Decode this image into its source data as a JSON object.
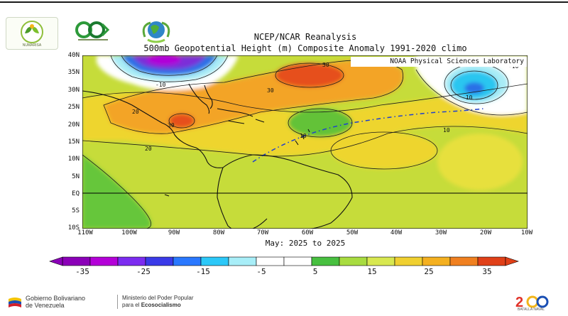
{
  "logos": {
    "left": "sunshine-logo",
    "middle": "ecological-logo",
    "right": "earth-leaves-logo",
    "left_text": "NUMARISA"
  },
  "title": {
    "line1": "NCEP/NCAR Reanalysis",
    "line2": "500mb Geopotential Height (m) Composite Anomaly 1991-2020 climo"
  },
  "credit": "NOAA Physical Sciences Laboratory",
  "lat_labels": [
    "40N",
    "35N",
    "30N",
    "25N",
    "20N",
    "15N",
    "10N",
    "5N",
    "EQ",
    "5S",
    "10S"
  ],
  "lon_labels": [
    "110W",
    "100W",
    "90W",
    "80W",
    "70W",
    "60W",
    "50W",
    "40W",
    "30W",
    "20W",
    "10W"
  ],
  "contour_labels": {
    "plus30_a": "30",
    "plus30_b": "30",
    "plus30_c": "30",
    "plus20_a": "20",
    "plus20_b": "20",
    "plus10_a": "10",
    "plus10_b": "10",
    "minus10_a": "-10",
    "minus10_b": "-10",
    "minus10_c": "-10"
  },
  "period": "May: 2025 to 2025",
  "colorbar": {
    "labels": [
      "-35",
      "-25",
      "-15",
      "-5",
      "5",
      "15",
      "25",
      "35"
    ],
    "colors": [
      "#8b00b8",
      "#b400d8",
      "#7c2cf0",
      "#3a3ae8",
      "#2a78ff",
      "#2cc8f8",
      "#a8eef8",
      "#ffffff",
      "#ffffff",
      "#48c040",
      "#a8dc40",
      "#d8e850",
      "#f0d030",
      "#f4b020",
      "#f08020",
      "#e04018"
    ]
  },
  "footer": {
    "gov_line1": "Gobierno Bolivariano",
    "gov_line2": "de Venezuela",
    "min_line1": "Ministerio del Poder Popular",
    "min_line2_prefix": "para el ",
    "min_line2_bold": "Ecosocialismo",
    "anniversary": "BATALLA NAVAL"
  },
  "colors": {
    "field_base": "#c9dd3b",
    "yellow": "#f1d331",
    "orange": "#f4a723",
    "red": "#e55020",
    "green": "#6cc83c",
    "cyan": "#36c7ee",
    "blue": "#2a6ee6",
    "purple": "#7b2fd8",
    "land": "#1a1a1a"
  }
}
